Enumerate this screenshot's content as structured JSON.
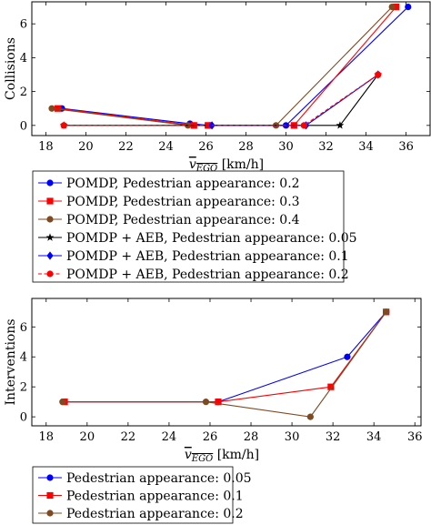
{
  "chart_data": [
    {
      "type": "line",
      "xlabel_sym": "v",
      "xlabel_sub": "EGO",
      "xlabel_unit": " [km/h]",
      "ylabel": "Collisions",
      "xlim": [
        17.3,
        37.2
      ],
      "ylim": [
        -0.6,
        7.3
      ],
      "xticks": [
        18,
        20,
        22,
        24,
        26,
        28,
        30,
        32,
        34,
        36
      ],
      "yticks": [
        0,
        2,
        4,
        6
      ],
      "legend_position": "below",
      "series": [
        {
          "name": "POMDP, Pedestrian appearance: 0.2",
          "color": "#0000ff",
          "marker": "circle",
          "dash": "solid",
          "x": [
            18.8,
            25.2,
            26.2,
            30.0,
            36.1
          ],
          "y": [
            1,
            0.1,
            0,
            0,
            7
          ]
        },
        {
          "name": "POMDP, Pedestrian appearance: 0.3",
          "color": "#ff0000",
          "marker": "square",
          "dash": "solid",
          "x": [
            18.6,
            25.4,
            26.1,
            30.4,
            35.5
          ],
          "y": [
            1,
            0,
            0,
            0,
            7
          ]
        },
        {
          "name": "POMDP, Pedestrian appearance: 0.4",
          "color": "#7f4a21",
          "marker": "circle",
          "dash": "solid",
          "x": [
            18.3,
            25.1,
            29.5,
            35.3
          ],
          "y": [
            1,
            0,
            0,
            7
          ]
        },
        {
          "name": "POMDP + AEB, Pedestrian appearance: 0.05",
          "color": "#000000",
          "marker": "star",
          "dash": "solid",
          "x": [
            18.9,
            32.7,
            34.6
          ],
          "y": [
            0,
            0,
            3
          ]
        },
        {
          "name": "POMDP + AEB, Pedestrian appearance: 0.1",
          "color": "#0000ff",
          "marker": "diamond",
          "dash": "solid",
          "x": [
            26.3,
            31.0,
            34.6
          ],
          "y": [
            0,
            0,
            3
          ]
        },
        {
          "name": "POMDP + AEB, Pedestrian appearance: 0.2",
          "color": "#ff0000",
          "marker": "circle",
          "dash": "dashed",
          "x": [
            18.9,
            30.9,
            34.6
          ],
          "y": [
            0,
            0,
            3
          ]
        }
      ]
    },
    {
      "type": "line",
      "xlabel_sym": "v",
      "xlabel_sub": "EGO",
      "xlabel_unit": " [km/h]",
      "ylabel": "Interventions",
      "xlim": [
        17.3,
        36.3
      ],
      "ylim": [
        -0.6,
        7.9
      ],
      "xticks": [
        18,
        20,
        22,
        24,
        26,
        28,
        30,
        32,
        34,
        36
      ],
      "yticks": [
        0,
        2,
        4,
        6
      ],
      "legend_position": "below",
      "series": [
        {
          "name": "Pedestrian appearance: 0.05",
          "color": "#0000ff",
          "marker": "circle",
          "dash": "solid",
          "x": [
            18.9,
            26.4,
            32.7,
            34.6
          ],
          "y": [
            1,
            1,
            4,
            7
          ]
        },
        {
          "name": "Pedestrian appearance: 0.1",
          "color": "#ff0000",
          "marker": "square",
          "dash": "solid",
          "x": [
            18.9,
            26.4,
            31.9,
            34.6
          ],
          "y": [
            1,
            1,
            2,
            7
          ]
        },
        {
          "name": "Pedestrian appearance: 0.2",
          "color": "#7f4a21",
          "marker": "circle",
          "dash": "solid",
          "x": [
            18.8,
            25.8,
            30.9,
            34.6
          ],
          "y": [
            1,
            1,
            0,
            7
          ]
        }
      ]
    }
  ]
}
